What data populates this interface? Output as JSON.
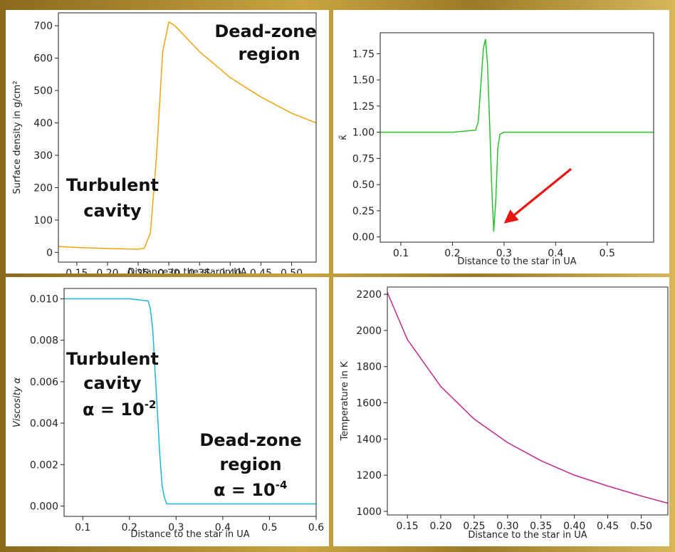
{
  "chart_data": [
    {
      "type": "line",
      "xlabel": "Distance to the star in UA",
      "ylabel": "Surface density in g/cm²",
      "xlim": [
        0.12,
        0.54
      ],
      "ylim": [
        -30,
        740
      ],
      "xticks": [
        "0.15",
        "0.20",
        "0.25",
        "0.30",
        "0.35",
        "0.40",
        "0.45",
        "0.50"
      ],
      "yticks": [
        "0",
        "100",
        "200",
        "300",
        "400",
        "500",
        "600",
        "700"
      ],
      "series": [
        {
          "color": "#f0a30a",
          "x": [
            0.12,
            0.15,
            0.2,
            0.25,
            0.26,
            0.27,
            0.28,
            0.29,
            0.3,
            0.31,
            0.33,
            0.35,
            0.4,
            0.45,
            0.5,
            0.54
          ],
          "y": [
            18,
            15,
            12,
            10,
            13,
            60,
            300,
            620,
            712,
            700,
            660,
            620,
            540,
            480,
            430,
            400
          ]
        }
      ],
      "annotations": [
        {
          "lines": [
            "Dead-zone",
            "region"
          ],
          "x": 0.42,
          "y": 640
        },
        {
          "lines": [
            "Turbulent",
            "cavity"
          ],
          "x": 0.175,
          "y": 150
        }
      ]
    },
    {
      "type": "line",
      "xlabel": "Distance to the star in UA",
      "ylabel": "κ̃",
      "xlim": [
        0.06,
        0.59
      ],
      "ylim": [
        -0.05,
        1.95
      ],
      "xticks": [
        "0.1",
        "0.2",
        "0.3",
        "0.4",
        "0.5"
      ],
      "yticks": [
        "0.00",
        "0.25",
        "0.50",
        "0.75",
        "1.00",
        "1.25",
        "1.50",
        "1.75"
      ],
      "series": [
        {
          "color": "#2cbf2c",
          "x": [
            0.06,
            0.2,
            0.245,
            0.25,
            0.255,
            0.26,
            0.264,
            0.268,
            0.272,
            0.276,
            0.28,
            0.284,
            0.288,
            0.292,
            0.3,
            0.31,
            0.59
          ],
          "y": [
            1.0,
            1.0,
            1.02,
            1.1,
            1.45,
            1.8,
            1.89,
            1.65,
            1.1,
            0.5,
            0.05,
            0.35,
            0.85,
            0.98,
            1.0,
            1.0,
            1.0
          ]
        }
      ],
      "arrow": {
        "color": "#e8160f",
        "from": [
          0.43,
          0.65
        ],
        "to": [
          0.31,
          0.17
        ]
      }
    },
    {
      "type": "line",
      "xlabel": "Distance to the star in UA",
      "ylabel": "Viscosity α",
      "xlim": [
        0.06,
        0.6
      ],
      "ylim": [
        -0.0005,
        0.0105
      ],
      "xticks": [
        "0.1",
        "0.2",
        "0.3",
        "0.4",
        "0.5",
        "0.6"
      ],
      "yticks": [
        "0.000",
        "0.002",
        "0.004",
        "0.006",
        "0.008",
        "0.010"
      ],
      "series": [
        {
          "color": "#1ab8d8",
          "x": [
            0.06,
            0.2,
            0.24,
            0.245,
            0.25,
            0.255,
            0.26,
            0.265,
            0.27,
            0.275,
            0.28,
            0.3,
            0.6
          ],
          "y": [
            0.01,
            0.01,
            0.0099,
            0.0095,
            0.0085,
            0.0065,
            0.0045,
            0.0025,
            0.001,
            0.0004,
            0.0001,
            0.0001,
            0.0001
          ]
        }
      ],
      "annotations": [
        {
          "lines": [
            "Turbulent",
            "cavity",
            "α = 10",
            "-2"
          ]
        },
        {
          "lines": [
            "Dead-zone",
            "region",
            "α = 10",
            "-4"
          ]
        }
      ]
    },
    {
      "type": "line",
      "xlabel": "Distance to the star in UA",
      "ylabel": "Temperature in K",
      "xlim": [
        0.12,
        0.54
      ],
      "ylim": [
        980,
        2240
      ],
      "xticks": [
        "0.15",
        "0.20",
        "0.25",
        "0.30",
        "0.35",
        "0.40",
        "0.45",
        "0.50"
      ],
      "yticks": [
        "1000",
        "1200",
        "1400",
        "1600",
        "1800",
        "2000",
        "2200"
      ],
      "series": [
        {
          "color": "#c0288a",
          "x": [
            0.12,
            0.15,
            0.2,
            0.25,
            0.3,
            0.35,
            0.4,
            0.45,
            0.5,
            0.54
          ],
          "y": [
            2210,
            1950,
            1690,
            1510,
            1380,
            1280,
            1200,
            1140,
            1085,
            1045
          ]
        }
      ]
    }
  ]
}
